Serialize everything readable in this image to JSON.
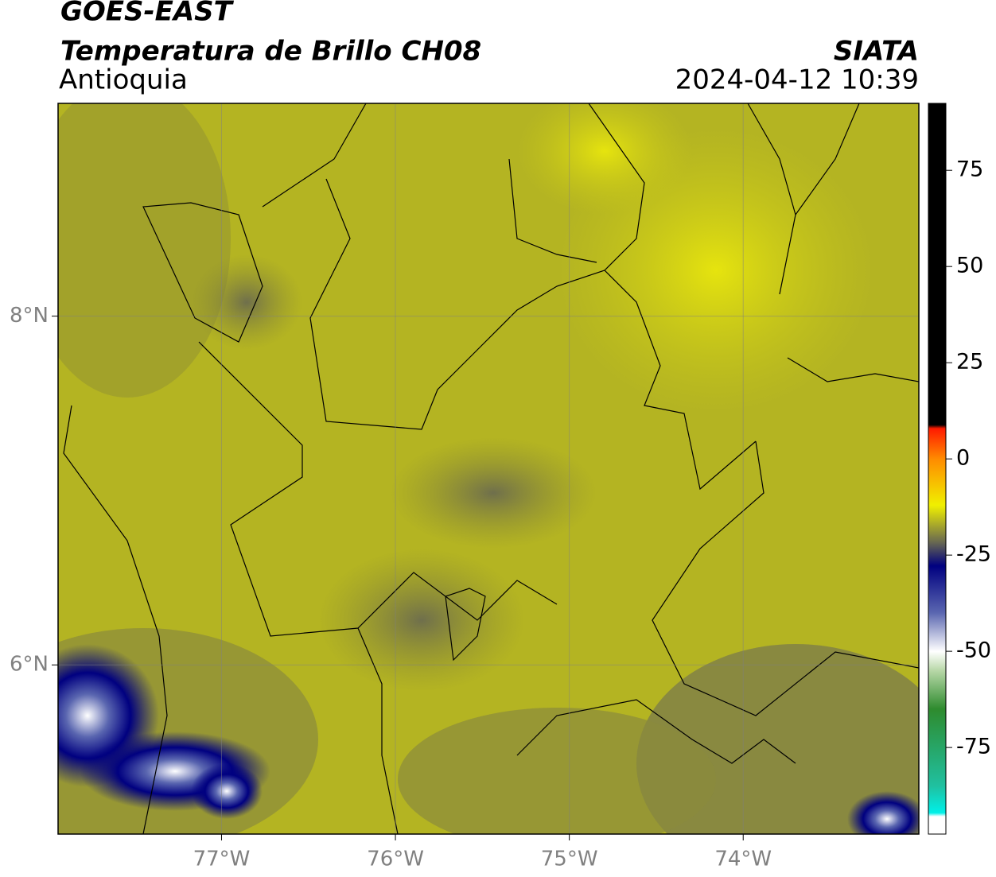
{
  "header": {
    "satellite": "GOES-EAST",
    "product": "Temperatura de Brillo CH08",
    "region": "Antioquia",
    "source": "SIATA",
    "timestamp": "2024-04-12 10:39"
  },
  "map": {
    "lon_range": [
      -77.94,
      -72.99
    ],
    "lat_range": [
      5.03,
      9.22
    ],
    "lon_ticks": [
      {
        "value": -77,
        "label": "77°W"
      },
      {
        "value": -76,
        "label": "76°W"
      },
      {
        "value": -75,
        "label": "75°W"
      },
      {
        "value": -74,
        "label": "74°W"
      }
    ],
    "lat_ticks": [
      {
        "value": 8,
        "label": "8°N"
      },
      {
        "value": 6,
        "label": "6°N"
      }
    ]
  },
  "colorbar": {
    "lim": [
      -97.5,
      92.4
    ],
    "ticks": [
      75,
      50,
      25,
      0,
      -25,
      -50,
      -75
    ]
  }
}
